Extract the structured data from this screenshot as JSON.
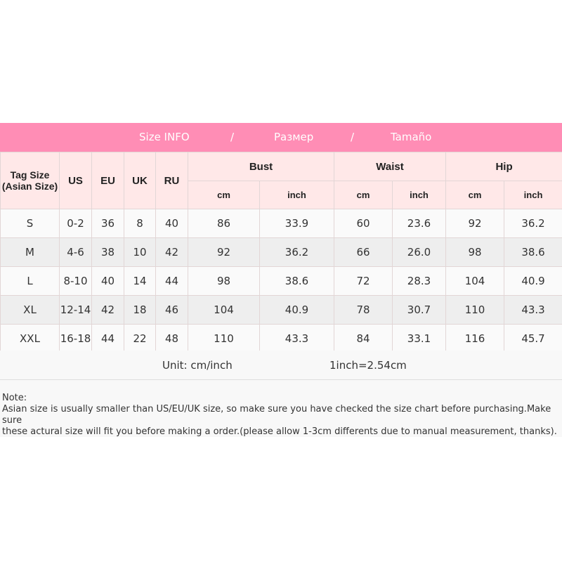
{
  "banner": {
    "size_info": "Size INFO",
    "sep1": "/",
    "ru": "Размер",
    "sep2": "/",
    "es": "Tamaño",
    "color": "#ff8db5"
  },
  "headers": {
    "tag": "Tag Size (Asian Size)",
    "us": "US",
    "eu": "EU",
    "uk": "UK",
    "ru": "RU",
    "bust": "Bust",
    "waist": "Waist",
    "hip": "Hip",
    "cm": "cm",
    "inch": "inch"
  },
  "rows": [
    [
      "S",
      "0-2",
      "36",
      "8",
      "40",
      "86",
      "33.9",
      "60",
      "23.6",
      "92",
      "36.2"
    ],
    [
      "M",
      "4-6",
      "38",
      "10",
      "42",
      "92",
      "36.2",
      "66",
      "26.0",
      "98",
      "38.6"
    ],
    [
      "L",
      "8-10",
      "40",
      "14",
      "44",
      "98",
      "38.6",
      "72",
      "28.3",
      "104",
      "40.9"
    ],
    [
      "XL",
      "12-14",
      "42",
      "18",
      "46",
      "104",
      "40.9",
      "78",
      "30.7",
      "110",
      "43.3"
    ],
    [
      "XXL",
      "16-18",
      "44",
      "22",
      "48",
      "110",
      "43.3",
      "84",
      "33.1",
      "116",
      "45.7"
    ]
  ],
  "unit": {
    "label": "Unit: cm/inch",
    "conversion": "1inch=2.54cm"
  },
  "note": {
    "title": "Note:",
    "line1": "Asian size is usually smaller than US/EU/UK size, so make sure you have checked the size chart before purchasing.Make sure",
    "line2": "these actural size will fit you before making a order.(please allow 1-3cm differents due to manual measurement, thanks)."
  }
}
